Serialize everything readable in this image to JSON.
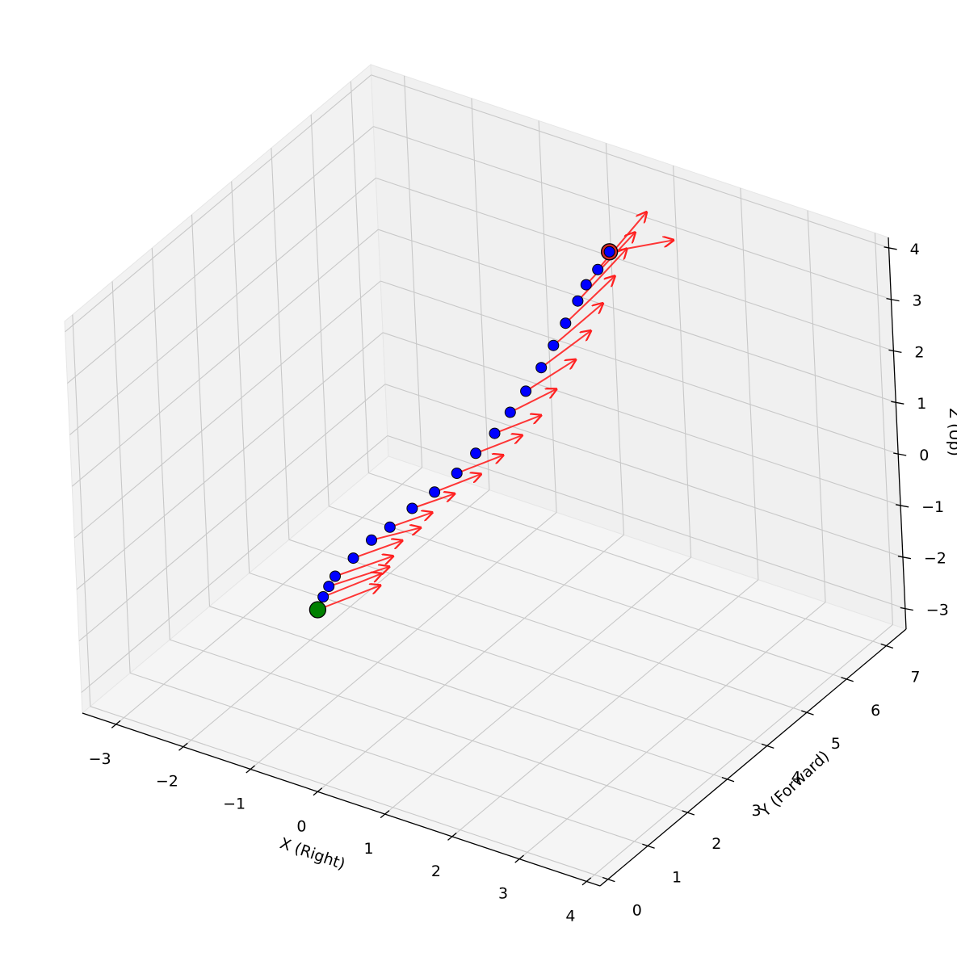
{
  "chart_data": {
    "type": "scatter",
    "projection": "3d",
    "title": "",
    "xlabel": "X (Right)",
    "ylabel": "Y (Forward)",
    "zlabel": "Z (Up)",
    "xlim": [
      -3.5,
      4.2
    ],
    "ylim": [
      -0.2,
      7.5
    ],
    "zlim": [
      -3.4,
      4.2
    ],
    "x_ticks": [
      "−3",
      "−2",
      "−1",
      "0",
      "1",
      "2",
      "3",
      "4"
    ],
    "y_ticks": [
      "0",
      "1",
      "2",
      "3",
      "4",
      "5",
      "6",
      "7"
    ],
    "z_ticks": [
      "−3",
      "−2",
      "−1",
      "0",
      "1",
      "2",
      "3",
      "4"
    ],
    "grid": true,
    "colors": {
      "start_marker": "#008000",
      "end_marker": "#d62728",
      "points": "#0000ff",
      "direction_vectors": "#ff2020",
      "pane_left": "#f2f2f2",
      "pane_back": "#f0f0f0",
      "pane_floor": "#f5f5f5",
      "grid": "#c8c8c8"
    },
    "start_point": {
      "x": 0.0,
      "y": 0.0,
      "z": 0.0
    },
    "end_point": {
      "x": 0.6,
      "y": 6.5,
      "z": 3.0
    },
    "trajectory": [
      {
        "x": 0.0,
        "y": 0.0,
        "z": 0.0,
        "dx": 0.9,
        "dy": 0.1,
        "dz": 0.8
      },
      {
        "x": 0.03,
        "y": 0.1,
        "z": 0.2,
        "dx": 0.8,
        "dy": 0.15,
        "dz": 0.7
      },
      {
        "x": 0.06,
        "y": 0.2,
        "z": 0.35,
        "dx": 0.8,
        "dy": 0.2,
        "dz": 0.6
      },
      {
        "x": 0.1,
        "y": 0.3,
        "z": 0.5,
        "dx": 0.7,
        "dy": 0.3,
        "dz": 0.5
      },
      {
        "x": 0.2,
        "y": 0.6,
        "z": 0.7,
        "dx": 0.5,
        "dy": 0.4,
        "dz": 0.3
      },
      {
        "x": 0.3,
        "y": 0.9,
        "z": 0.9,
        "dx": 0.5,
        "dy": 0.4,
        "dz": 0.2
      },
      {
        "x": 0.4,
        "y": 1.2,
        "z": 1.0,
        "dx": 0.4,
        "dy": 0.4,
        "dz": 0.2
      },
      {
        "x": 0.5,
        "y": 1.6,
        "z": 1.15,
        "dx": 0.4,
        "dy": 0.4,
        "dz": 0.2
      },
      {
        "x": 0.6,
        "y": 2.0,
        "z": 1.25,
        "dx": 0.4,
        "dy": 0.5,
        "dz": 0.2
      },
      {
        "x": 0.7,
        "y": 2.4,
        "z": 1.4,
        "dx": 0.4,
        "dy": 0.5,
        "dz": 0.2
      },
      {
        "x": 0.75,
        "y": 2.8,
        "z": 1.55,
        "dx": 0.4,
        "dy": 0.5,
        "dz": 0.2
      },
      {
        "x": 0.8,
        "y": 3.2,
        "z": 1.7,
        "dx": 0.4,
        "dy": 0.5,
        "dz": 0.2
      },
      {
        "x": 0.8,
        "y": 3.6,
        "z": 1.85,
        "dx": 0.4,
        "dy": 0.5,
        "dz": 0.3
      },
      {
        "x": 0.8,
        "y": 4.0,
        "z": 2.0,
        "dx": 0.4,
        "dy": 0.6,
        "dz": 0.4
      },
      {
        "x": 0.8,
        "y": 4.4,
        "z": 2.2,
        "dx": 0.4,
        "dy": 0.6,
        "dz": 0.5
      },
      {
        "x": 0.75,
        "y": 4.8,
        "z": 2.35,
        "dx": 0.4,
        "dy": 0.6,
        "dz": 0.6
      },
      {
        "x": 0.7,
        "y": 5.2,
        "z": 2.5,
        "dx": 0.4,
        "dy": 0.6,
        "dz": 0.7
      },
      {
        "x": 0.65,
        "y": 5.6,
        "z": 2.65,
        "dx": 0.4,
        "dy": 0.6,
        "dz": 0.8
      },
      {
        "x": 0.6,
        "y": 5.9,
        "z": 2.75,
        "dx": 0.4,
        "dy": 0.6,
        "dz": 0.8
      },
      {
        "x": 0.6,
        "y": 6.2,
        "z": 2.85,
        "dx": 0.4,
        "dy": 0.6,
        "dz": 0.9
      },
      {
        "x": 0.6,
        "y": 6.5,
        "z": 3.0,
        "dx": 0.6,
        "dy": 0.6,
        "dz": 0.1
      }
    ]
  }
}
